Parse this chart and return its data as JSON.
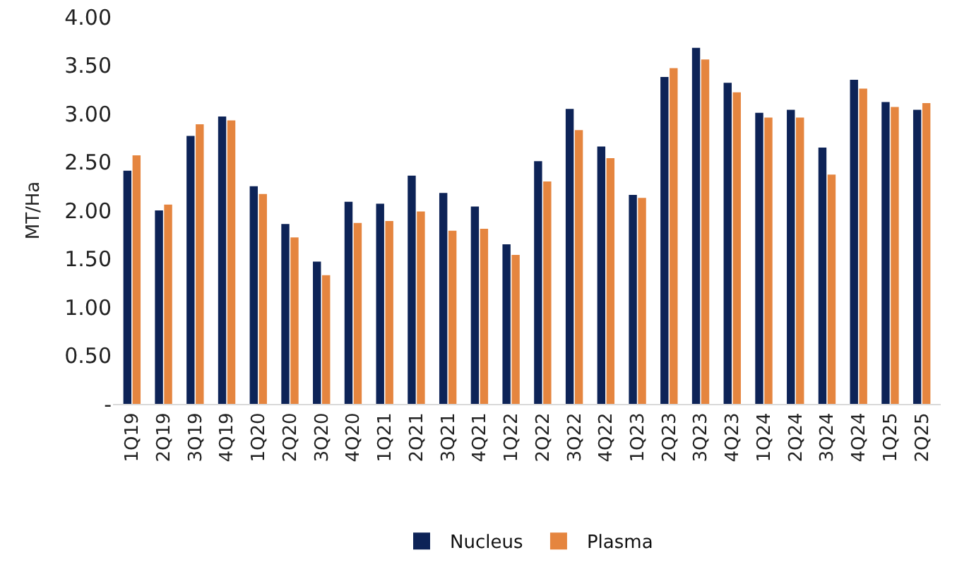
{
  "chart_data": {
    "type": "bar",
    "ylabel": "MT/Ha",
    "categories": [
      "1Q19",
      "2Q19",
      "3Q19",
      "4Q19",
      "1Q20",
      "2Q20",
      "3Q20",
      "4Q20",
      "1Q21",
      "2Q21",
      "3Q21",
      "4Q21",
      "1Q22",
      "2Q22",
      "3Q22",
      "4Q22",
      "1Q23",
      "2Q23",
      "3Q23",
      "4Q23",
      "1Q24",
      "2Q24",
      "3Q24",
      "4Q24",
      "1Q25",
      "2Q25"
    ],
    "series": [
      {
        "name": "Nucleus",
        "color": "#0d2357",
        "values": [
          2.41,
          2.0,
          2.77,
          2.97,
          2.25,
          1.86,
          1.47,
          2.09,
          2.07,
          2.36,
          2.18,
          2.04,
          1.65,
          2.51,
          3.05,
          2.66,
          2.16,
          3.38,
          3.68,
          3.32,
          3.01,
          3.04,
          2.65,
          3.35,
          3.12,
          3.04
        ]
      },
      {
        "name": "Plasma",
        "color": "#e5853f",
        "values": [
          2.57,
          2.06,
          2.89,
          2.93,
          2.17,
          1.72,
          1.33,
          1.87,
          1.89,
          1.99,
          1.79,
          1.81,
          1.54,
          2.3,
          2.83,
          2.54,
          2.13,
          3.47,
          3.56,
          3.22,
          2.96,
          2.96,
          2.37,
          3.26,
          3.07,
          3.11
        ]
      }
    ],
    "ylim": [
      0,
      4
    ],
    "yticks": [
      {
        "value": 0,
        "label": "-"
      },
      {
        "value": 0.5,
        "label": "0.50"
      },
      {
        "value": 1,
        "label": "1.00"
      },
      {
        "value": 1.5,
        "label": "1.50"
      },
      {
        "value": 2,
        "label": "2.00"
      },
      {
        "value": 2.5,
        "label": "2.50"
      },
      {
        "value": 3,
        "label": "3.00"
      },
      {
        "value": 3.5,
        "label": "3.50"
      },
      {
        "value": 4,
        "label": "4.00"
      }
    ],
    "grid": false,
    "legend": "bottom"
  }
}
